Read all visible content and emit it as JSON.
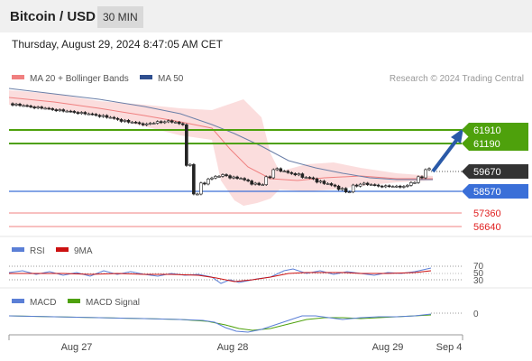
{
  "header": {
    "title": "Bitcoin / USD",
    "timeframe": "30 MIN"
  },
  "timestamp": "Thursday, August 29, 2024 8:47:05 AM CET",
  "legend": {
    "ma20": "MA 20 + Bollinger Bands",
    "ma50": "MA 50",
    "credit": "Research © 2024 Trading Central",
    "ma20_color": "#f08080",
    "ma50_color": "#2f4f8f"
  },
  "levels": [
    {
      "value": "61910",
      "style": "resistance",
      "color": "#4ea10c"
    },
    {
      "value": "61190",
      "style": "resistance",
      "color": "#4ea10c"
    },
    {
      "value": "59670",
      "style": "last-price",
      "color": "#333333"
    },
    {
      "value": "58570",
      "style": "pivot",
      "color": "#3a6fd8"
    },
    {
      "value": "57360",
      "style": "support",
      "color": "#e02020"
    },
    {
      "value": "56640",
      "style": "support",
      "color": "#e02020"
    }
  ],
  "rsi": {
    "label": "RSI",
    "signal_label": "9MA",
    "ticks": [
      "70",
      "50",
      "30"
    ],
    "color": "#5b7fd6",
    "signal_color": "#cc1111"
  },
  "macd": {
    "label": "MACD",
    "signal_label": "MACD Signal",
    "zero": "0",
    "color": "#5b7fd6",
    "signal_color": "#4ea10c"
  },
  "x_axis": {
    "labels": [
      "Aug 27",
      "Aug 28",
      "Aug 29",
      "Sep 4"
    ]
  },
  "chart_data": {
    "type": "candlestick",
    "title": "Bitcoin / USD",
    "timeframe": "30 MIN",
    "ylim": [
      55800,
      63600
    ],
    "x_categories": [
      "Aug 27",
      "Aug 28",
      "Aug 29",
      "Sep 4"
    ],
    "close_series_approx": [
      62700,
      62650,
      62600,
      62560,
      62520,
      62470,
      62430,
      62380,
      62340,
      62300,
      62250,
      62200,
      62150,
      62080,
      62000,
      61920,
      61850,
      61800,
      61750,
      61800,
      61850,
      61900,
      61850,
      61750,
      59800,
      58400,
      58900,
      59150,
      59250,
      59300,
      59200,
      59150,
      59050,
      58900,
      58850,
      59200,
      59600,
      59500,
      59400,
      59350,
      59200,
      59150,
      59000,
      58900,
      58800,
      58650,
      58500,
      58800,
      58900,
      58850,
      58800,
      58780,
      58760,
      58750,
      58800,
      58950,
      59200,
      59600
    ],
    "series": [
      {
        "name": "MA 20 + Bollinger Bands",
        "type": "line"
      },
      {
        "name": "MA 50",
        "type": "line"
      }
    ],
    "forecast": {
      "direction": "up",
      "from": 59670,
      "to": 61910
    },
    "levels": [
      61910,
      61190,
      59670,
      58570,
      57360,
      56640
    ]
  }
}
